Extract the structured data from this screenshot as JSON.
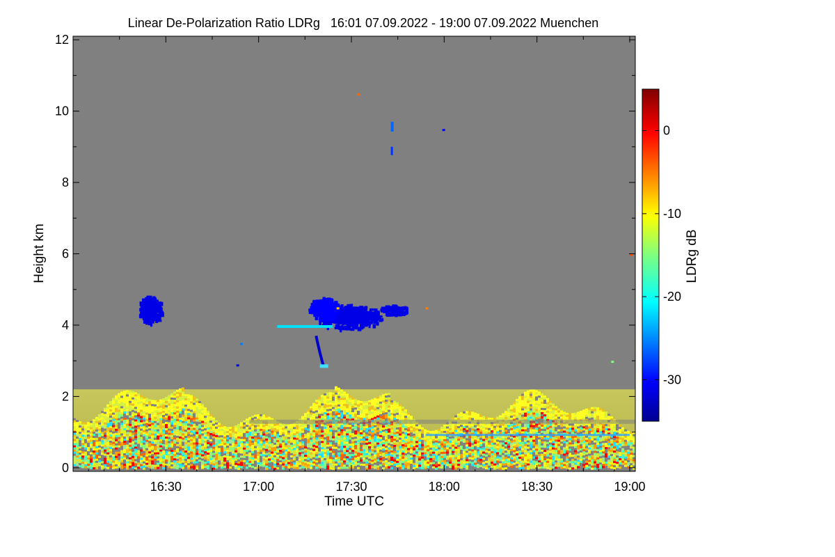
{
  "chart_data": {
    "type": "heatmap",
    "title": "Linear De-Polarization Ratio LDRg   16:01 07.09.2022 - 19:00 07.09.2022 Muenchen",
    "xlabel": "Time UTC",
    "ylabel": "Height km",
    "x_range_hours": [
      16.0,
      19.03
    ],
    "y_range_km": [
      -0.1,
      12.1
    ],
    "x_ticks": [
      {
        "label": "16:30",
        "value": 16.5
      },
      {
        "label": "17:00",
        "value": 17.0
      },
      {
        "label": "17:30",
        "value": 17.5
      },
      {
        "label": "18:00",
        "value": 18.0
      },
      {
        "label": "18:30",
        "value": 18.5
      },
      {
        "label": "19:00",
        "value": 19.0
      }
    ],
    "y_ticks": [
      {
        "label": "0",
        "value": 0
      },
      {
        "label": "2",
        "value": 2
      },
      {
        "label": "4",
        "value": 4
      },
      {
        "label": "6",
        "value": 6
      },
      {
        "label": "8",
        "value": 8
      },
      {
        "label": "10",
        "value": 10
      },
      {
        "label": "12",
        "value": 12
      }
    ],
    "colorbar": {
      "label": "LDRg dB",
      "range": [
        -35,
        5
      ],
      "ticks": [
        {
          "label": "0",
          "value": 0
        },
        {
          "label": "-10",
          "value": -10
        },
        {
          "label": "-20",
          "value": -20
        },
        {
          "label": "-30",
          "value": -30
        }
      ]
    },
    "background_color": "#808080",
    "features": [
      {
        "name": "boundary layer aerosol",
        "t_start": 16.0,
        "t_end": 19.03,
        "h_bottom": 0.0,
        "h_top": 2.2,
        "ldr_db": -11
      },
      {
        "name": "cloud 16:25",
        "t_center": 16.41,
        "h_center": 4.45,
        "ldr_db": -31
      },
      {
        "name": "cloud 17:30",
        "t_center": 17.48,
        "h_center": 4.25,
        "ldr_db": -31
      },
      {
        "name": "virga 17:20",
        "t_center": 17.33,
        "h_center": 3.3,
        "ldr_db": -32
      },
      {
        "name": "cirrus 17:43",
        "t_center": 17.72,
        "h_center": 9.5,
        "ldr_db": -26
      }
    ]
  }
}
